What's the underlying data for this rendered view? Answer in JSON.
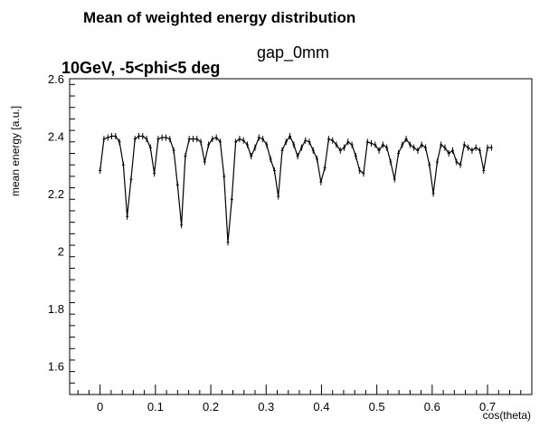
{
  "chart_data": {
    "type": "line",
    "title": "Mean of weighted energy distribution",
    "subtitle": "gap_0mm",
    "annotation": "10GeV, -5<phi<5 deg",
    "xlabel": "cos(theta)",
    "ylabel": "mean energy [a.u.]",
    "xlim": [
      -0.055,
      0.78
    ],
    "ylim": [
      1.5,
      2.6
    ],
    "xticks": [
      0,
      0.1,
      0.2,
      0.3,
      0.4,
      0.5,
      0.6,
      0.7
    ],
    "xtick_labels": [
      "0",
      "0.1",
      "0.2",
      "0.3",
      "0.4",
      "0.5",
      "0.6",
      "0.7"
    ],
    "yticks": [
      1.6,
      1.8,
      2.0,
      2.2,
      2.4,
      2.6
    ],
    "ytick_labels": [
      "1.6",
      "1.8",
      "2",
      "2.2",
      "2.4",
      "2.6"
    ],
    "grid": false,
    "line_color": "#000000",
    "series": [
      {
        "x": [
          0.0,
          0.007,
          0.014,
          0.021,
          0.028,
          0.035,
          0.042,
          0.049,
          0.056,
          0.063,
          0.07,
          0.077,
          0.084,
          0.091,
          0.098,
          0.105,
          0.112,
          0.119,
          0.126,
          0.133,
          0.14,
          0.147,
          0.154,
          0.161,
          0.168,
          0.175,
          0.182,
          0.189,
          0.196,
          0.203,
          0.21,
          0.217,
          0.224,
          0.231,
          0.238,
          0.245,
          0.252,
          0.259,
          0.266,
          0.273,
          0.28,
          0.287,
          0.294,
          0.301,
          0.308,
          0.315,
          0.322,
          0.329,
          0.336,
          0.343,
          0.35,
          0.357,
          0.364,
          0.371,
          0.378,
          0.385,
          0.392,
          0.399,
          0.406,
          0.413,
          0.42,
          0.427,
          0.434,
          0.441,
          0.448,
          0.455,
          0.462,
          0.469,
          0.476,
          0.483,
          0.49,
          0.497,
          0.504,
          0.511,
          0.518,
          0.525,
          0.532,
          0.539,
          0.546,
          0.553,
          0.56,
          0.567,
          0.574,
          0.581,
          0.588,
          0.595,
          0.602,
          0.609,
          0.616,
          0.623,
          0.63,
          0.637,
          0.644,
          0.651,
          0.658,
          0.665,
          0.672,
          0.679,
          0.686,
          0.693,
          0.7,
          0.707
        ],
        "y": [
          2.28,
          2.39,
          2.395,
          2.4,
          2.4,
          2.38,
          2.3,
          2.12,
          2.25,
          2.39,
          2.4,
          2.4,
          2.39,
          2.36,
          2.27,
          2.39,
          2.395,
          2.395,
          2.39,
          2.35,
          2.23,
          2.09,
          2.33,
          2.39,
          2.39,
          2.39,
          2.38,
          2.31,
          2.37,
          2.39,
          2.395,
          2.38,
          2.26,
          2.03,
          2.18,
          2.38,
          2.39,
          2.385,
          2.37,
          2.33,
          2.36,
          2.395,
          2.39,
          2.37,
          2.32,
          2.28,
          2.19,
          2.35,
          2.38,
          2.4,
          2.37,
          2.33,
          2.36,
          2.385,
          2.38,
          2.35,
          2.32,
          2.24,
          2.29,
          2.39,
          2.385,
          2.37,
          2.35,
          2.36,
          2.38,
          2.37,
          2.33,
          2.28,
          2.27,
          2.38,
          2.375,
          2.37,
          2.35,
          2.37,
          2.36,
          2.31,
          2.25,
          2.34,
          2.37,
          2.39,
          2.37,
          2.36,
          2.35,
          2.37,
          2.36,
          2.3,
          2.2,
          2.31,
          2.37,
          2.36,
          2.34,
          2.35,
          2.31,
          2.3,
          2.37,
          2.36,
          2.35,
          2.36,
          2.35,
          2.28,
          2.36,
          2.36
        ]
      }
    ]
  }
}
